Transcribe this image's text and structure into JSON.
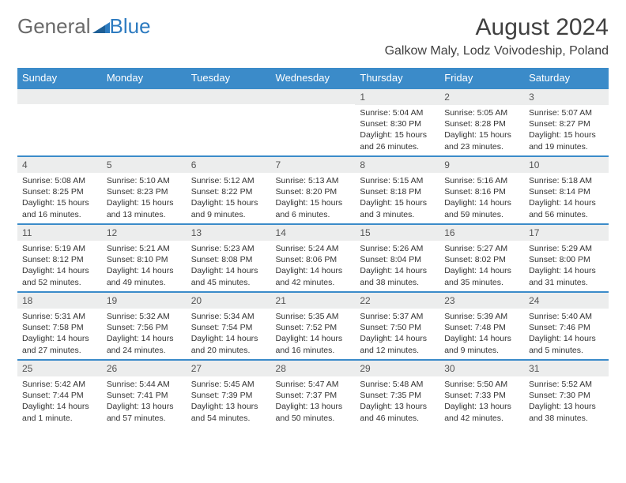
{
  "logo": {
    "word1": "General",
    "word2": "Blue"
  },
  "title": "August 2024",
  "location": "Galkow Maly, Lodz Voivodeship, Poland",
  "colors": {
    "header_bg": "#3b8bc9",
    "header_text": "#ffffff",
    "daynum_bg": "#eceded",
    "row_border": "#3b8bc9",
    "logo_gray": "#6a6a6a",
    "logo_blue": "#2d7bc0",
    "body_text": "#333333"
  },
  "weekdays": [
    "Sunday",
    "Monday",
    "Tuesday",
    "Wednesday",
    "Thursday",
    "Friday",
    "Saturday"
  ],
  "weeks": [
    [
      {
        "day": "",
        "sunrise": "",
        "sunset": "",
        "daylight": ""
      },
      {
        "day": "",
        "sunrise": "",
        "sunset": "",
        "daylight": ""
      },
      {
        "day": "",
        "sunrise": "",
        "sunset": "",
        "daylight": ""
      },
      {
        "day": "",
        "sunrise": "",
        "sunset": "",
        "daylight": ""
      },
      {
        "day": "1",
        "sunrise": "Sunrise: 5:04 AM",
        "sunset": "Sunset: 8:30 PM",
        "daylight": "Daylight: 15 hours and 26 minutes."
      },
      {
        "day": "2",
        "sunrise": "Sunrise: 5:05 AM",
        "sunset": "Sunset: 8:28 PM",
        "daylight": "Daylight: 15 hours and 23 minutes."
      },
      {
        "day": "3",
        "sunrise": "Sunrise: 5:07 AM",
        "sunset": "Sunset: 8:27 PM",
        "daylight": "Daylight: 15 hours and 19 minutes."
      }
    ],
    [
      {
        "day": "4",
        "sunrise": "Sunrise: 5:08 AM",
        "sunset": "Sunset: 8:25 PM",
        "daylight": "Daylight: 15 hours and 16 minutes."
      },
      {
        "day": "5",
        "sunrise": "Sunrise: 5:10 AM",
        "sunset": "Sunset: 8:23 PM",
        "daylight": "Daylight: 15 hours and 13 minutes."
      },
      {
        "day": "6",
        "sunrise": "Sunrise: 5:12 AM",
        "sunset": "Sunset: 8:22 PM",
        "daylight": "Daylight: 15 hours and 9 minutes."
      },
      {
        "day": "7",
        "sunrise": "Sunrise: 5:13 AM",
        "sunset": "Sunset: 8:20 PM",
        "daylight": "Daylight: 15 hours and 6 minutes."
      },
      {
        "day": "8",
        "sunrise": "Sunrise: 5:15 AM",
        "sunset": "Sunset: 8:18 PM",
        "daylight": "Daylight: 15 hours and 3 minutes."
      },
      {
        "day": "9",
        "sunrise": "Sunrise: 5:16 AM",
        "sunset": "Sunset: 8:16 PM",
        "daylight": "Daylight: 14 hours and 59 minutes."
      },
      {
        "day": "10",
        "sunrise": "Sunrise: 5:18 AM",
        "sunset": "Sunset: 8:14 PM",
        "daylight": "Daylight: 14 hours and 56 minutes."
      }
    ],
    [
      {
        "day": "11",
        "sunrise": "Sunrise: 5:19 AM",
        "sunset": "Sunset: 8:12 PM",
        "daylight": "Daylight: 14 hours and 52 minutes."
      },
      {
        "day": "12",
        "sunrise": "Sunrise: 5:21 AM",
        "sunset": "Sunset: 8:10 PM",
        "daylight": "Daylight: 14 hours and 49 minutes."
      },
      {
        "day": "13",
        "sunrise": "Sunrise: 5:23 AM",
        "sunset": "Sunset: 8:08 PM",
        "daylight": "Daylight: 14 hours and 45 minutes."
      },
      {
        "day": "14",
        "sunrise": "Sunrise: 5:24 AM",
        "sunset": "Sunset: 8:06 PM",
        "daylight": "Daylight: 14 hours and 42 minutes."
      },
      {
        "day": "15",
        "sunrise": "Sunrise: 5:26 AM",
        "sunset": "Sunset: 8:04 PM",
        "daylight": "Daylight: 14 hours and 38 minutes."
      },
      {
        "day": "16",
        "sunrise": "Sunrise: 5:27 AM",
        "sunset": "Sunset: 8:02 PM",
        "daylight": "Daylight: 14 hours and 35 minutes."
      },
      {
        "day": "17",
        "sunrise": "Sunrise: 5:29 AM",
        "sunset": "Sunset: 8:00 PM",
        "daylight": "Daylight: 14 hours and 31 minutes."
      }
    ],
    [
      {
        "day": "18",
        "sunrise": "Sunrise: 5:31 AM",
        "sunset": "Sunset: 7:58 PM",
        "daylight": "Daylight: 14 hours and 27 minutes."
      },
      {
        "day": "19",
        "sunrise": "Sunrise: 5:32 AM",
        "sunset": "Sunset: 7:56 PM",
        "daylight": "Daylight: 14 hours and 24 minutes."
      },
      {
        "day": "20",
        "sunrise": "Sunrise: 5:34 AM",
        "sunset": "Sunset: 7:54 PM",
        "daylight": "Daylight: 14 hours and 20 minutes."
      },
      {
        "day": "21",
        "sunrise": "Sunrise: 5:35 AM",
        "sunset": "Sunset: 7:52 PM",
        "daylight": "Daylight: 14 hours and 16 minutes."
      },
      {
        "day": "22",
        "sunrise": "Sunrise: 5:37 AM",
        "sunset": "Sunset: 7:50 PM",
        "daylight": "Daylight: 14 hours and 12 minutes."
      },
      {
        "day": "23",
        "sunrise": "Sunrise: 5:39 AM",
        "sunset": "Sunset: 7:48 PM",
        "daylight": "Daylight: 14 hours and 9 minutes."
      },
      {
        "day": "24",
        "sunrise": "Sunrise: 5:40 AM",
        "sunset": "Sunset: 7:46 PM",
        "daylight": "Daylight: 14 hours and 5 minutes."
      }
    ],
    [
      {
        "day": "25",
        "sunrise": "Sunrise: 5:42 AM",
        "sunset": "Sunset: 7:44 PM",
        "daylight": "Daylight: 14 hours and 1 minute."
      },
      {
        "day": "26",
        "sunrise": "Sunrise: 5:44 AM",
        "sunset": "Sunset: 7:41 PM",
        "daylight": "Daylight: 13 hours and 57 minutes."
      },
      {
        "day": "27",
        "sunrise": "Sunrise: 5:45 AM",
        "sunset": "Sunset: 7:39 PM",
        "daylight": "Daylight: 13 hours and 54 minutes."
      },
      {
        "day": "28",
        "sunrise": "Sunrise: 5:47 AM",
        "sunset": "Sunset: 7:37 PM",
        "daylight": "Daylight: 13 hours and 50 minutes."
      },
      {
        "day": "29",
        "sunrise": "Sunrise: 5:48 AM",
        "sunset": "Sunset: 7:35 PM",
        "daylight": "Daylight: 13 hours and 46 minutes."
      },
      {
        "day": "30",
        "sunrise": "Sunrise: 5:50 AM",
        "sunset": "Sunset: 7:33 PM",
        "daylight": "Daylight: 13 hours and 42 minutes."
      },
      {
        "day": "31",
        "sunrise": "Sunrise: 5:52 AM",
        "sunset": "Sunset: 7:30 PM",
        "daylight": "Daylight: 13 hours and 38 minutes."
      }
    ]
  ]
}
